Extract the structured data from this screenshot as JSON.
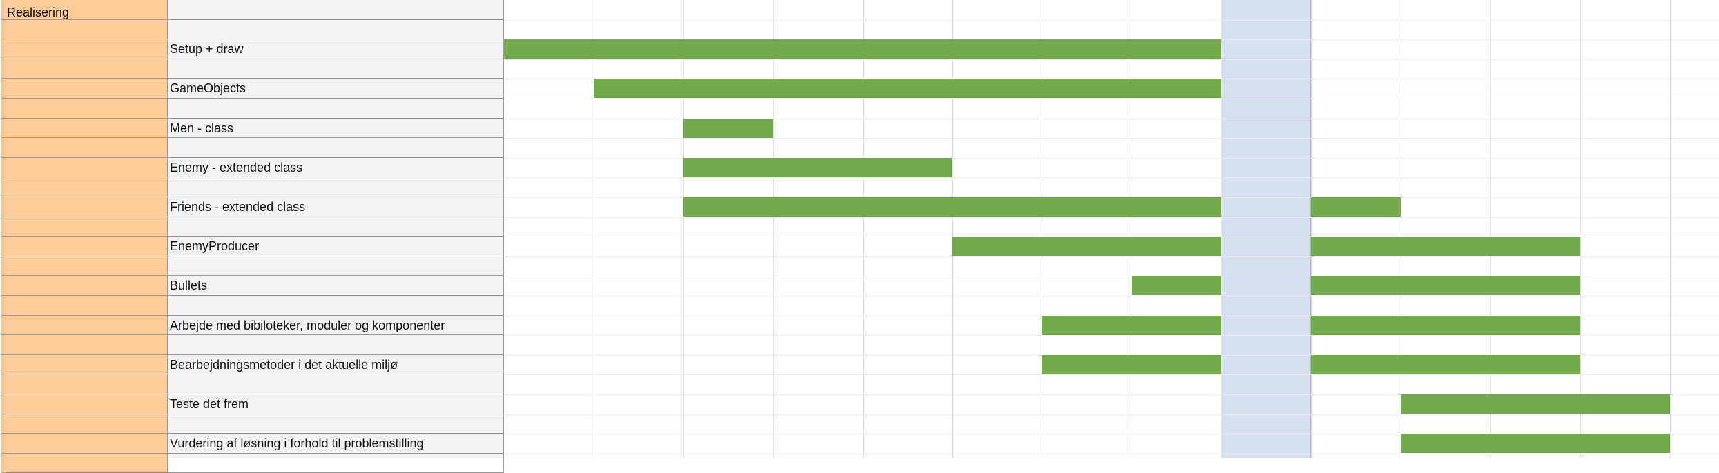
{
  "sheet": {
    "section_title": "Realisering",
    "week_count": 13,
    "break_week": 8,
    "colors": {
      "bar": "#72aa4c",
      "highlight": "#d6dff0",
      "section": "#ffcc99"
    },
    "tasks": [
      {
        "label": "Setup + draw",
        "segments": [
          [
            0,
            8
          ]
        ]
      },
      {
        "label": "GameObjects",
        "segments": [
          [
            1,
            8
          ]
        ]
      },
      {
        "label": "Men - class",
        "segments": [
          [
            2,
            3
          ]
        ]
      },
      {
        "label": "Enemy - extended class",
        "segments": [
          [
            2,
            5
          ]
        ]
      },
      {
        "label": "Friends - extended class",
        "segments": [
          [
            2,
            8
          ],
          [
            9,
            10
          ]
        ]
      },
      {
        "label": "EnemyProducer",
        "segments": [
          [
            5,
            8
          ],
          [
            9,
            12
          ]
        ]
      },
      {
        "label": "Bullets",
        "segments": [
          [
            7,
            8
          ],
          [
            9,
            12
          ]
        ]
      },
      {
        "label": "Arbejde med bibiloteker, moduler og komponenter",
        "segments": [
          [
            6,
            8
          ],
          [
            9,
            12
          ]
        ]
      },
      {
        "label": "Bearbejdningsmetoder i det aktuelle miljø",
        "segments": [
          [
            6,
            8
          ],
          [
            9,
            12
          ]
        ]
      },
      {
        "label": "Teste det frem",
        "segments": [
          [
            10,
            13
          ]
        ]
      },
      {
        "label": "Vurdering af løsning i forhold til problemstilling",
        "segments": [
          [
            10,
            13
          ]
        ]
      }
    ]
  }
}
